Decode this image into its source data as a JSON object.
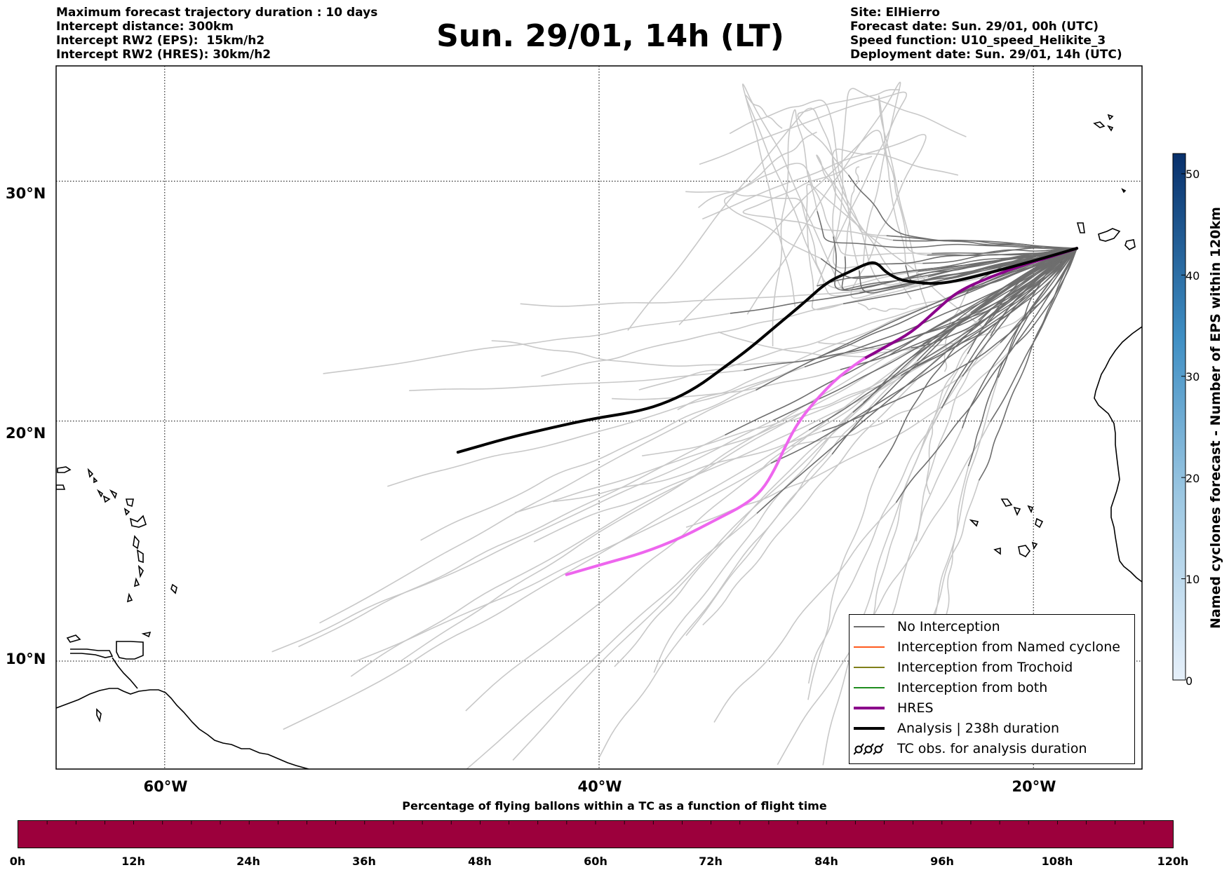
{
  "header": {
    "title": "Sun. 29/01, 14h (LT)",
    "left_lines": [
      "Maximum forecast trajectory duration : 10 days",
      "Intercept distance: 300km",
      "Intercept RW2 (EPS):  15km/h2",
      "Intercept RW2 (HRES): 30km/h2"
    ],
    "right_lines": [
      "Site: ElHierro",
      "Forecast date: Sun. 29/01, 00h (UTC)",
      "Speed function: U10_speed_Helikite_3",
      "Deployment date: Sun. 29/01, 14h (UTC)"
    ]
  },
  "map": {
    "lat_range": [
      5.5,
      34.8
    ],
    "lon_range": [
      -65,
      -15
    ],
    "lat_labels": [
      {
        "lat": 30,
        "text": "30°N"
      },
      {
        "lat": 20,
        "text": "20°N"
      },
      {
        "lat": 10,
        "text": "10°N"
      }
    ],
    "lon_labels": [
      {
        "lon": -60,
        "text": "60°W"
      },
      {
        "lon": -40,
        "text": "40°W"
      },
      {
        "lon": -20,
        "text": "20°W"
      }
    ],
    "grid": "dotted",
    "launch_site": {
      "lon": -18.0,
      "lat": 27.2
    }
  },
  "trajectories": {
    "hres": {
      "color": "#8b008b",
      "fade_color": "#ee66ee",
      "points": [
        [
          -18.0,
          27.2
        ],
        [
          -19.0,
          26.9
        ],
        [
          -20.5,
          26.5
        ],
        [
          -22.0,
          26.0
        ],
        [
          -23.5,
          25.4
        ],
        [
          -24.5,
          24.6
        ],
        [
          -25.6,
          23.7
        ],
        [
          -26.8,
          23.1
        ],
        [
          -27.8,
          22.6
        ],
        [
          -28.8,
          22.0
        ],
        [
          -29.9,
          21.0
        ],
        [
          -30.8,
          20.0
        ],
        [
          -31.4,
          19.0
        ],
        [
          -31.9,
          18.0
        ],
        [
          -32.5,
          17.1
        ],
        [
          -33.3,
          16.5
        ],
        [
          -34.6,
          15.9
        ],
        [
          -36.3,
          15.1
        ],
        [
          -38.0,
          14.5
        ],
        [
          -39.6,
          14.1
        ],
        [
          -41.5,
          13.6
        ]
      ]
    },
    "analysis": {
      "color": "#000000",
      "points": [
        [
          -18.0,
          27.2
        ],
        [
          -19.5,
          26.8
        ],
        [
          -21.5,
          26.3
        ],
        [
          -23.2,
          25.9
        ],
        [
          -24.5,
          25.7
        ],
        [
          -25.6,
          25.8
        ],
        [
          -26.2,
          25.9
        ],
        [
          -26.8,
          26.2
        ],
        [
          -27.2,
          26.6
        ],
        [
          -27.6,
          26.6
        ],
        [
          -28.5,
          26.2
        ],
        [
          -29.5,
          25.8
        ],
        [
          -30.6,
          24.9
        ],
        [
          -31.8,
          24.0
        ],
        [
          -33.1,
          23.0
        ],
        [
          -34.3,
          22.2
        ],
        [
          -35.5,
          21.4
        ],
        [
          -36.8,
          20.8
        ],
        [
          -38.2,
          20.4
        ],
        [
          -40.3,
          20.1
        ],
        [
          -42.3,
          19.7
        ],
        [
          -44.2,
          19.3
        ],
        [
          -46.5,
          18.7
        ]
      ]
    },
    "eps_no_interception_color": "#6e6e6e",
    "eps_faded_color": "#c8c8c8"
  },
  "legend": {
    "items": [
      {
        "label": "No Interception",
        "color": "#6e6e6e",
        "style": "thin"
      },
      {
        "label": "Interception from Named cyclone",
        "color": "#ff5a1e",
        "style": "thin"
      },
      {
        "label": "Interception from Trochoid",
        "color": "#80801a",
        "style": "thin"
      },
      {
        "label": "Interception from both",
        "color": "#1e8c1e",
        "style": "thin"
      },
      {
        "label": "HRES",
        "color": "#8b008b",
        "style": "thick"
      },
      {
        "label": "Analysis | 238h duration",
        "color": "#000000",
        "style": "thick"
      },
      {
        "label": "TC obs. for analysis duration",
        "color": "#000000",
        "style": "cyclone"
      }
    ]
  },
  "colorbar": {
    "title": "Named cyclones forecast - Number of EPS within 120km",
    "min": 0,
    "max": 52,
    "ticks": [
      "0",
      "10",
      "20",
      "30",
      "40",
      "50"
    ],
    "color_low": "#e2edf8",
    "color_high": "#08306b"
  },
  "time_bar": {
    "title": "Percentage of flying ballons within a TC as a function of flight time",
    "color": "#9c003c",
    "ticks": [
      "0h",
      "12h",
      "24h",
      "36h",
      "48h",
      "60h",
      "72h",
      "84h",
      "96h",
      "108h",
      "120h"
    ]
  }
}
